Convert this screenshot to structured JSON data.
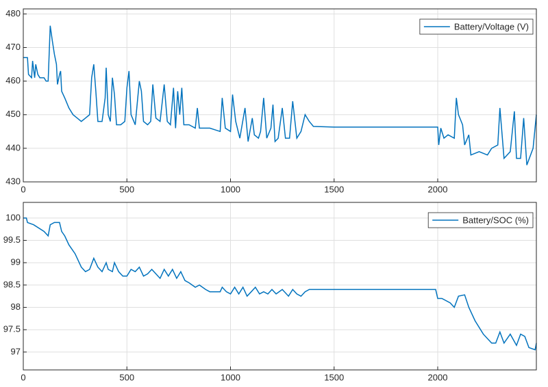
{
  "chart_data": [
    {
      "type": "line",
      "x": [
        0,
        20,
        25,
        40,
        45,
        55,
        60,
        70,
        80,
        100,
        110,
        120,
        130,
        140,
        150,
        160,
        165,
        175,
        180,
        185,
        200,
        220,
        240,
        260,
        280,
        300,
        320,
        330,
        340,
        350,
        360,
        380,
        395,
        400,
        410,
        420,
        430,
        440,
        450,
        470,
        490,
        500,
        510,
        520,
        540,
        560,
        570,
        580,
        600,
        615,
        625,
        640,
        660,
        680,
        695,
        710,
        725,
        735,
        745,
        755,
        765,
        775,
        800,
        830,
        840,
        850,
        900,
        950,
        960,
        975,
        1000,
        1010,
        1025,
        1045,
        1070,
        1085,
        1105,
        1115,
        1135,
        1145,
        1160,
        1175,
        1195,
        1205,
        1215,
        1230,
        1250,
        1265,
        1285,
        1300,
        1320,
        1340,
        1360,
        1380,
        1400,
        1500,
        2000,
        2005,
        2015,
        2030,
        2050,
        2080,
        2090,
        2100,
        2120,
        2130,
        2150,
        2160,
        2200,
        2240,
        2260,
        2290,
        2300,
        2320,
        2350,
        2370,
        2380,
        2400,
        2415,
        2430,
        2460,
        2476
      ],
      "series": [
        {
          "name": "Battery/Voltage (V)",
          "color": "#0072bd",
          "values": [
            467,
            467,
            462,
            461,
            466,
            461,
            465,
            462,
            461,
            461,
            460,
            460,
            476.5,
            472,
            468,
            465,
            459,
            462,
            463,
            457,
            455,
            452,
            450,
            449,
            448,
            449,
            450,
            461,
            465,
            457,
            448,
            448,
            455,
            464,
            450,
            448,
            461,
            456,
            447,
            447,
            448,
            458,
            463,
            450,
            447,
            460,
            457,
            448,
            447,
            448,
            459,
            449,
            448,
            459,
            448,
            447,
            458,
            446,
            457,
            450,
            458,
            447,
            447,
            446,
            452,
            446,
            446,
            445,
            455,
            446,
            445,
            456,
            448,
            443,
            452,
            442,
            449,
            444,
            443,
            445,
            455,
            443,
            446,
            453,
            442,
            443,
            452,
            443,
            443,
            454,
            443,
            445,
            450,
            448,
            446.5,
            446.3,
            446.3,
            441,
            446,
            443,
            444,
            443,
            455,
            450,
            447,
            441,
            444,
            438,
            439,
            438,
            440,
            441,
            452,
            437,
            439,
            451,
            437,
            437,
            449,
            435,
            440,
            450
          ]
        }
      ],
      "xlim": [
        0,
        2476
      ],
      "ylim": [
        430,
        481.5
      ],
      "xticks": [
        0,
        500,
        1000,
        1500,
        2000
      ],
      "yticks": [
        430,
        440,
        450,
        460,
        470,
        480
      ],
      "grid": true,
      "legend": "upper right"
    },
    {
      "type": "line",
      "x": [
        0,
        15,
        20,
        50,
        100,
        120,
        130,
        150,
        175,
        185,
        200,
        220,
        250,
        280,
        300,
        320,
        340,
        360,
        380,
        400,
        410,
        430,
        440,
        460,
        480,
        500,
        520,
        540,
        560,
        580,
        600,
        620,
        640,
        660,
        680,
        700,
        720,
        740,
        760,
        780,
        800,
        830,
        850,
        880,
        900,
        950,
        960,
        980,
        1000,
        1020,
        1040,
        1060,
        1080,
        1100,
        1120,
        1140,
        1160,
        1180,
        1200,
        1220,
        1250,
        1280,
        1300,
        1320,
        1340,
        1360,
        1380,
        1500,
        1990,
        2000,
        2020,
        2060,
        2080,
        2100,
        2130,
        2150,
        2180,
        2220,
        2260,
        2280,
        2300,
        2320,
        2350,
        2380,
        2400,
        2420,
        2440,
        2470,
        2476
      ],
      "series": [
        {
          "name": "Battery/SOC (%)",
          "color": "#0072bd",
          "values": [
            100,
            100,
            99.9,
            99.85,
            99.7,
            99.6,
            99.85,
            99.9,
            99.9,
            99.7,
            99.6,
            99.4,
            99.2,
            98.9,
            98.8,
            98.85,
            99.1,
            98.9,
            98.8,
            99.0,
            98.85,
            98.8,
            99.0,
            98.8,
            98.7,
            98.7,
            98.85,
            98.8,
            98.9,
            98.7,
            98.75,
            98.85,
            98.75,
            98.65,
            98.85,
            98.7,
            98.85,
            98.65,
            98.8,
            98.6,
            98.55,
            98.45,
            98.5,
            98.4,
            98.35,
            98.35,
            98.45,
            98.35,
            98.3,
            98.45,
            98.3,
            98.45,
            98.25,
            98.35,
            98.45,
            98.3,
            98.35,
            98.3,
            98.4,
            98.3,
            98.4,
            98.25,
            98.4,
            98.3,
            98.25,
            98.35,
            98.4,
            98.4,
            98.4,
            98.2,
            98.2,
            98.1,
            98.0,
            98.25,
            98.28,
            98.0,
            97.7,
            97.4,
            97.2,
            97.2,
            97.45,
            97.2,
            97.4,
            97.15,
            97.4,
            97.35,
            97.1,
            97.05,
            97.2
          ]
        }
      ],
      "xlim": [
        0,
        2476
      ],
      "ylim": [
        96.6,
        100.35
      ],
      "xticks": [
        0,
        500,
        1000,
        1500,
        2000
      ],
      "yticks": [
        97,
        97.5,
        98,
        98.5,
        99,
        99.5,
        100
      ],
      "grid": true,
      "legend": "upper right"
    }
  ]
}
